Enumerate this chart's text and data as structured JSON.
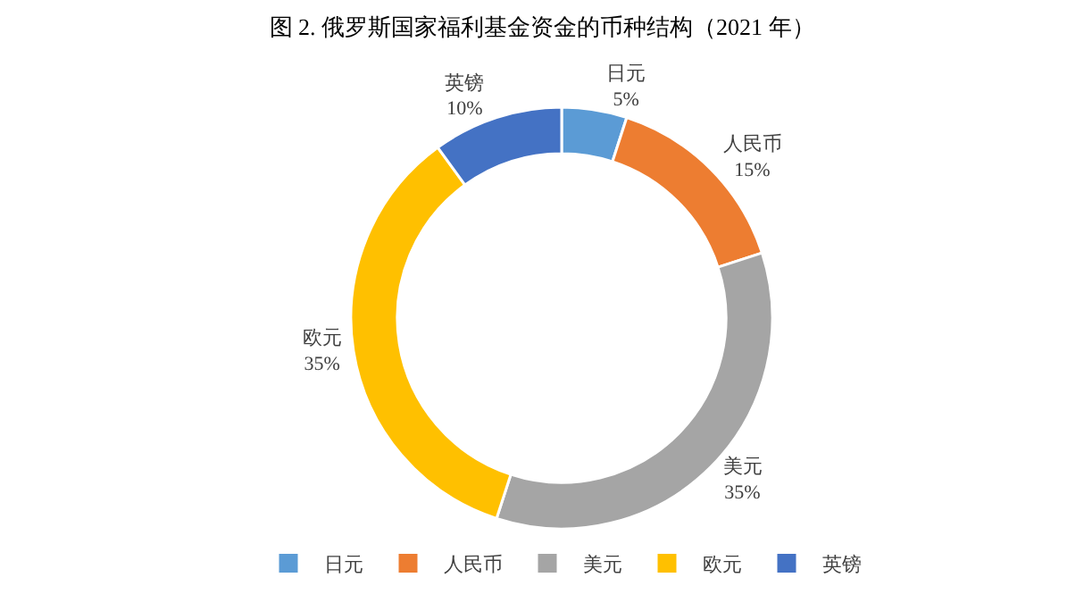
{
  "chart_data": {
    "type": "donut",
    "title": "图 2. 俄罗斯国家福利基金资金的币种结构（2021 年）",
    "categories": [
      "日元",
      "人民币",
      "美元",
      "欧元",
      "英镑"
    ],
    "values": [
      5,
      15,
      35,
      35,
      10
    ],
    "value_labels": [
      "5%",
      "15%",
      "35%",
      "35%",
      "10%"
    ],
    "colors": [
      "#5b9bd5",
      "#ed7d31",
      "#a5a5a5",
      "#ffc000",
      "#4472c4"
    ],
    "legend": "bottom"
  }
}
